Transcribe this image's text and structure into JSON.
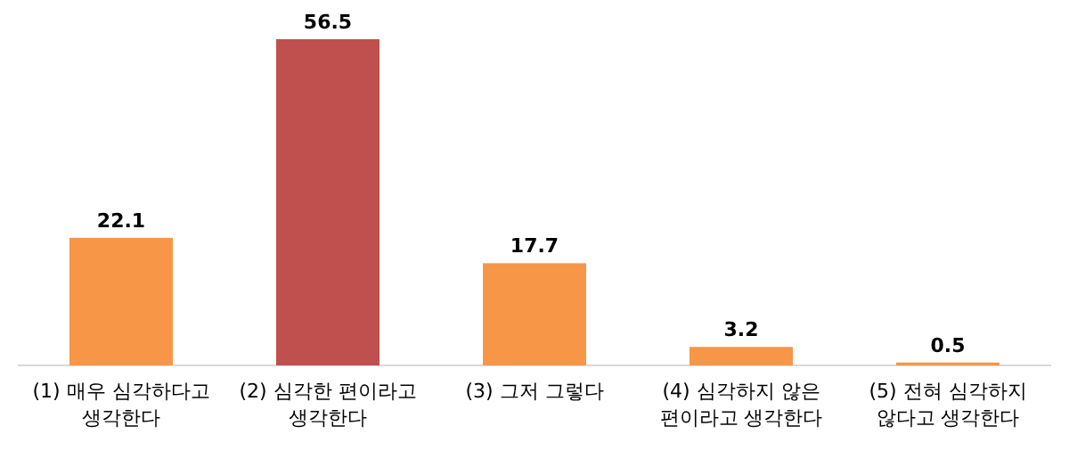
{
  "chart_data": {
    "type": "bar",
    "categories": [
      "(1) 매우 심각하다고 생각한다",
      "(2) 심각한 편이라고 생각한다",
      "(3) 그저 그렇다",
      "(4) 심각하지 않은 편이라고 생각한다",
      "(5) 전혀 심각하지 않다고 생각한다"
    ],
    "values": [
      22.1,
      56.5,
      17.7,
      3.2,
      0.5
    ],
    "colors": [
      "#f79646",
      "#c0504d",
      "#f79646",
      "#f79646",
      "#f79646"
    ],
    "data_labels": true
  }
}
